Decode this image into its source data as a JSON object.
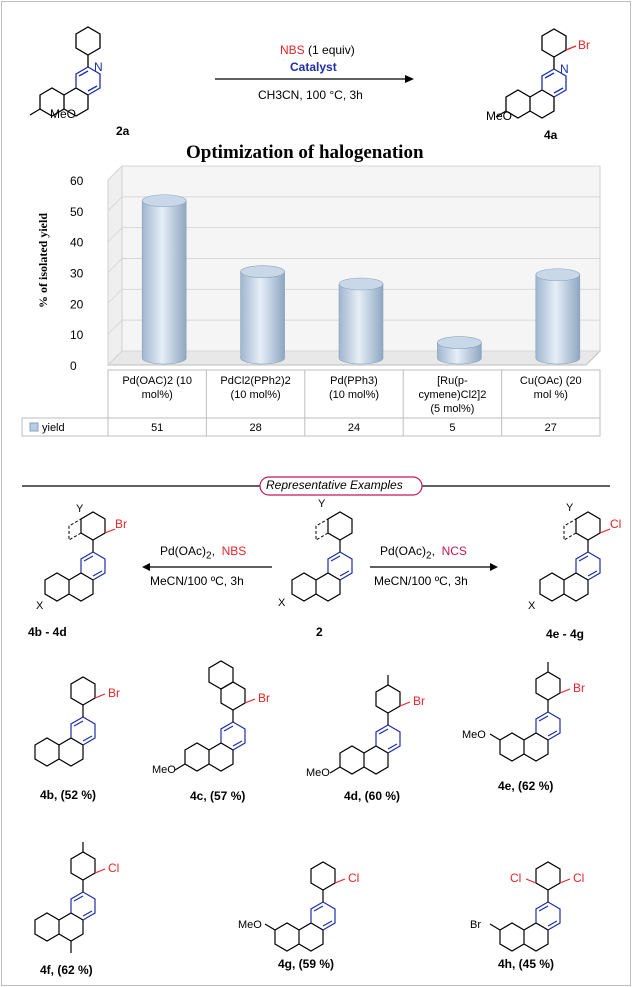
{
  "top_scheme": {
    "reactant_label": "2a",
    "product_label": "4a",
    "reagent": "NBS",
    "reagent_equiv": "(1 equiv)",
    "catalyst": "Catalyst",
    "solvent_conditions": "CH3CN, 100 °C, 3h",
    "substituent_meo": "MeO",
    "substituent_br": "Br",
    "atom_n": "N"
  },
  "chart_data": {
    "type": "bar",
    "title": "Optimization of halogenation",
    "ylabel": "% of isolated yield",
    "xlabel": "",
    "ylim": [
      0,
      60
    ],
    "yticks": [
      0,
      10,
      20,
      30,
      40,
      50,
      60
    ],
    "categories": [
      [
        "Pd(OAC)2  (10",
        "mol%)"
      ],
      [
        "PdCl2(PPh2)2",
        "(10 mol%)"
      ],
      [
        "Pd(PPh3)",
        "(10 mol%)"
      ],
      [
        "[Ru(p-",
        "cymene)Cl2]2",
        "(5 mol%)"
      ],
      [
        "Cu(OAc)   (20",
        "mol %)"
      ]
    ],
    "series": [
      {
        "name": "yield",
        "values": [
          51,
          28,
          24,
          5,
          27
        ]
      }
    ],
    "value_labels": [
      "51",
      "28",
      "24",
      "5",
      "27"
    ],
    "bar_color": "#b8cde3"
  },
  "representative": {
    "banner": "Representative Examples",
    "left_reagent": "Pd(OAc)",
    "left_reagent_sub": "2",
    "left_reagent_hal": "NBS",
    "left_conditions": "MeCN/100 ºC, 3h",
    "right_reagent": "Pd(OAc)",
    "right_reagent_sub": "2",
    "right_reagent_hal": "NCS",
    "right_conditions": "MeCN/100 ºC, 3h",
    "center_label": "2",
    "left_label": "4b - 4d",
    "right_label": "4e - 4g",
    "var_x": "X",
    "var_y": "Y",
    "atom_br": "Br",
    "atom_cl": "Cl"
  },
  "examples": [
    {
      "label": "4b,  (52 %)"
    },
    {
      "label": "4c,  (57 %)"
    },
    {
      "label": "4d,  (60 %)"
    },
    {
      "label": "4e,  (62 %)"
    },
    {
      "label": "4f,  (62 %)"
    },
    {
      "label": "4g,  (59 %)"
    },
    {
      "label": "4h,  (45 %)"
    }
  ],
  "colors": {
    "bond": "#000000",
    "ring_n": "#1c2ea8",
    "halogen_red": "#e8242a",
    "banner": "#c2185b"
  }
}
